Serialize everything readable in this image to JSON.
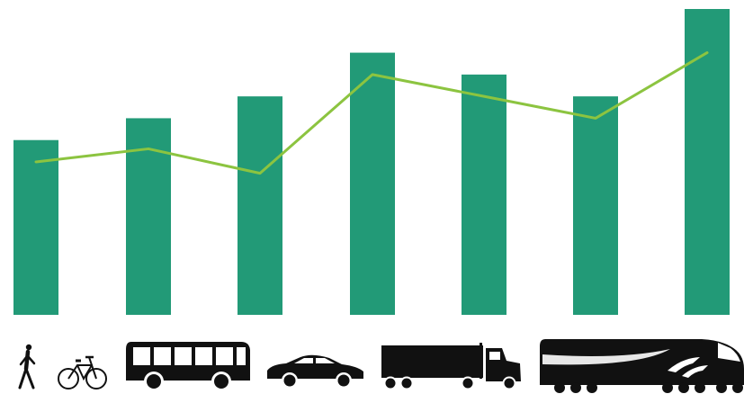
{
  "chart_data": {
    "type": "bar",
    "categories": [
      "walk-bike",
      "bus",
      "car",
      "truck",
      "train-1",
      "train-2",
      "train-3"
    ],
    "series": [
      {
        "type": "bar",
        "values": [
          200,
          225,
          250,
          300,
          275,
          250,
          350
        ]
      },
      {
        "type": "line",
        "values": [
          175,
          190,
          162,
          275,
          250,
          225,
          300
        ]
      }
    ],
    "ylim": [
      0,
      350
    ],
    "grid": false,
    "colors": {
      "bar": "#229a77",
      "line": "#8cc440",
      "icon": "#111111"
    },
    "icons": [
      "pedestrian-icon",
      "bicycle-icon",
      "bus-icon",
      "car-icon",
      "truck-icon",
      "train-icon"
    ]
  }
}
